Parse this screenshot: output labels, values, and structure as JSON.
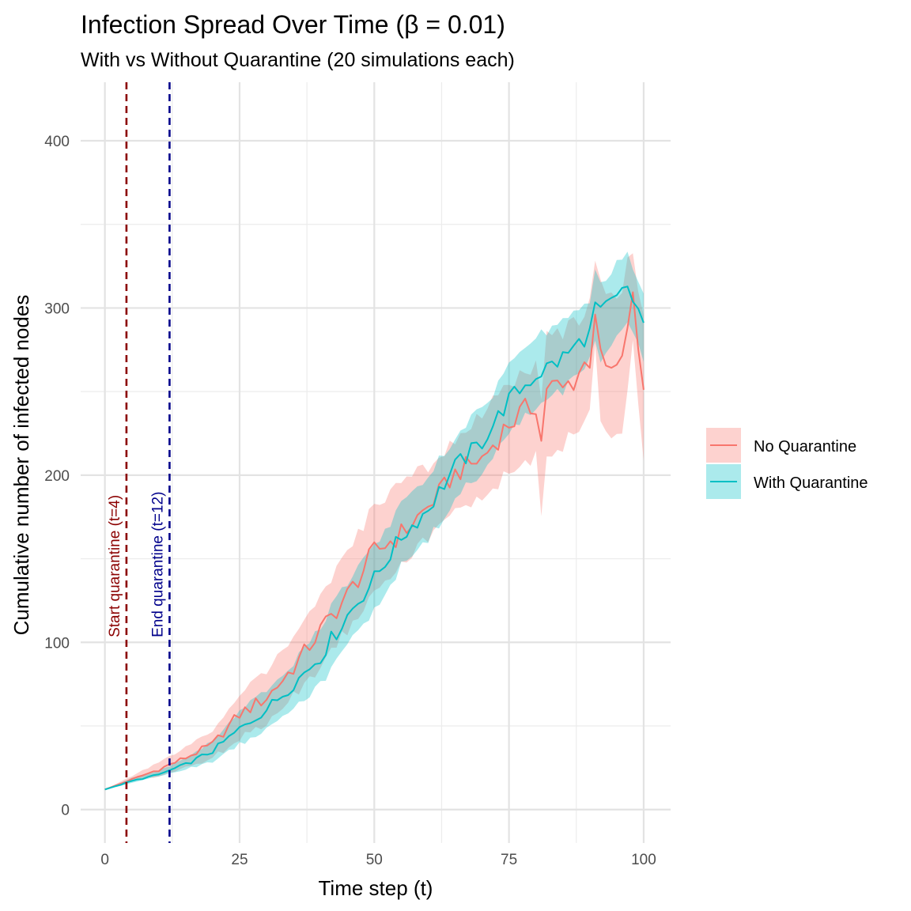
{
  "chart_data": {
    "type": "line",
    "title": "Infection Spread Over Time (β = 0.01)",
    "subtitle": "With vs Without Quarantine (20 simulations each)",
    "xlabel": "Time step (t)",
    "ylabel": "Cumulative number of infected nodes",
    "xlim": [
      -4.5,
      105
    ],
    "ylim": [
      -20,
      435
    ],
    "x_ticks": [
      0,
      25,
      50,
      75,
      100
    ],
    "y_ticks": [
      0,
      100,
      200,
      300,
      400
    ],
    "x_minor_ticks": [
      12.5,
      37.5,
      62.5,
      87.5
    ],
    "y_minor_ticks": [
      50,
      150,
      250,
      350
    ],
    "grid": true,
    "legend_position": "right",
    "annotations": [
      {
        "x": 4,
        "label": "Start quarantine (t=4)",
        "color": "#8b0000",
        "label_y": 103
      },
      {
        "x": 12,
        "label": "End quarantine (t=12)",
        "color": "#00008b",
        "label_y": 103
      }
    ],
    "series": [
      {
        "name": "No Quarantine",
        "color": "#F8766D",
        "x_keys": [
          0,
          5,
          10,
          15,
          20,
          25,
          30,
          35,
          40,
          45,
          50,
          55,
          60,
          65,
          70,
          75,
          80,
          81,
          82,
          85,
          90,
          91,
          92,
          95,
          96,
          97,
          98,
          100
        ],
        "values": [
          12,
          18,
          24,
          31,
          39,
          57,
          67,
          85,
          107,
          128,
          154,
          165,
          181,
          201,
          210,
          231,
          243,
          220,
          254,
          250,
          270,
          299,
          265,
          258,
          275,
          280,
          310,
          249
        ],
        "lower": [
          12,
          17,
          20,
          25,
          31,
          42,
          52,
          68,
          86,
          108,
          132,
          148,
          162,
          178,
          188,
          200,
          210,
          180,
          215,
          215,
          240,
          280,
          228,
          220,
          228,
          245,
          283,
          208
        ],
        "upper": [
          12,
          20,
          28,
          37,
          47,
          70,
          83,
          103,
          128,
          152,
          182,
          196,
          205,
          221,
          236,
          255,
          265,
          240,
          283,
          285,
          302,
          325,
          312,
          302,
          315,
          328,
          330,
          289
        ]
      },
      {
        "name": "With Quarantine",
        "color": "#00BFC4",
        "x_keys": [
          0,
          5,
          10,
          15,
          20,
          25,
          30,
          35,
          40,
          45,
          50,
          55,
          60,
          65,
          70,
          75,
          80,
          85,
          90,
          91,
          92,
          93,
          95,
          97,
          98,
          100
        ],
        "values": [
          12,
          17,
          21,
          27,
          35,
          48,
          60,
          75,
          92,
          116,
          138,
          163,
          180,
          205,
          220,
          245,
          260,
          270,
          285,
          302,
          295,
          300,
          305,
          312,
          305,
          291
        ],
        "lower": [
          12,
          16,
          20,
          24,
          29,
          39,
          49,
          62,
          74,
          98,
          120,
          145,
          161,
          186,
          202,
          225,
          241,
          250,
          268,
          282,
          270,
          276,
          285,
          294,
          284,
          270
        ],
        "upper": [
          12,
          19,
          23,
          31,
          41,
          58,
          72,
          88,
          110,
          136,
          157,
          182,
          198,
          224,
          240,
          264,
          282,
          294,
          304,
          320,
          315,
          318,
          326,
          333,
          326,
          312
        ]
      }
    ]
  }
}
